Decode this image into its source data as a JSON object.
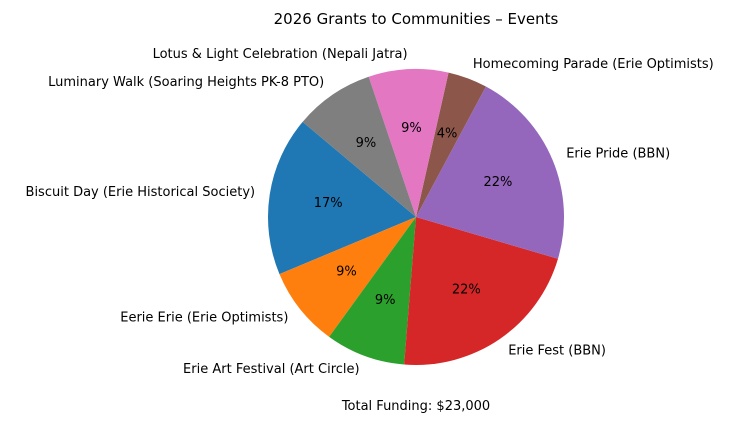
{
  "chart_data": {
    "type": "pie",
    "title": "2026 Grants to Communities – Events",
    "footer": "Total Funding: $23,000",
    "slices": [
      {
        "label": "Biscuit Day (Erie Historical Society)",
        "value": 17.4,
        "pct_label": "17%",
        "color": "#1f77b4"
      },
      {
        "label": "Eerie Erie (Erie Optimists)",
        "value": 8.7,
        "pct_label": "9%",
        "color": "#ff7f0e"
      },
      {
        "label": "Erie Art Festival (Art Circle)",
        "value": 8.7,
        "pct_label": "9%",
        "color": "#2ca02c"
      },
      {
        "label": "Erie Fest (BBN)",
        "value": 21.7,
        "pct_label": "22%",
        "color": "#d62728"
      },
      {
        "label": "Erie Pride (BBN)",
        "value": 21.7,
        "pct_label": "22%",
        "color": "#9467bd"
      },
      {
        "label": "Homecoming Parade (Erie Optimists)",
        "value": 4.3,
        "pct_label": "4%",
        "color": "#8c564b"
      },
      {
        "label": "Lotus & Light Celebration (Nepali Jatra)",
        "value": 8.7,
        "pct_label": "9%",
        "color": "#e377c2"
      },
      {
        "label": "Luminary Walk (Soaring Heights PK-8 PTO)",
        "value": 8.7,
        "pct_label": "9%",
        "color": "#7f7f7f"
      }
    ]
  }
}
